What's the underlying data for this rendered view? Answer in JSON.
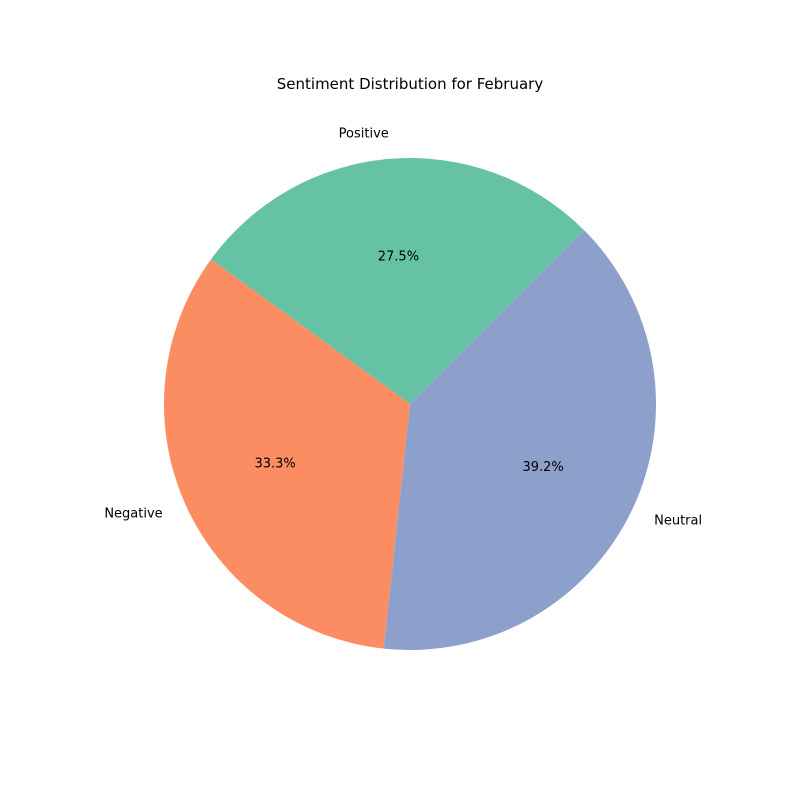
{
  "chart_data": {
    "type": "pie",
    "title": "Sentiment Distribution for February",
    "slices": [
      {
        "label": "Positive",
        "value": 27.5,
        "pct_label": "27.5%",
        "color": "#66c2a5"
      },
      {
        "label": "Negative",
        "value": 33.3,
        "pct_label": "33.3%",
        "color": "#fc8d62"
      },
      {
        "label": "Neutral",
        "value": 39.2,
        "pct_label": "39.2%",
        "color": "#8da0cb"
      }
    ],
    "legend": false
  }
}
